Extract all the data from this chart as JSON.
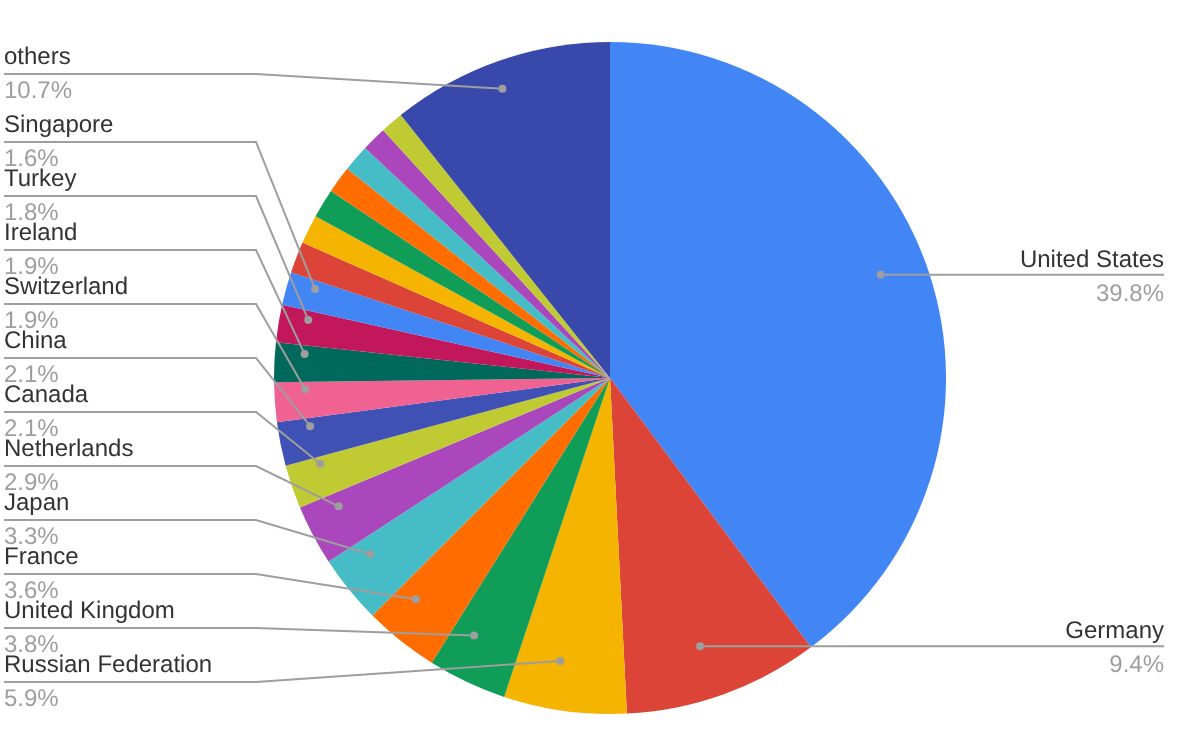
{
  "chart_data": {
    "type": "pie",
    "legend": false,
    "categories": [
      "United States",
      "Germany",
      "Russian Federation",
      "United Kingdom",
      "France",
      "Japan",
      "Netherlands",
      "Canada",
      "China",
      "Switzerland",
      "Ireland",
      "Turkey",
      "Singapore",
      null,
      null,
      null,
      null,
      null,
      null,
      null,
      "others"
    ],
    "values": [
      39.8,
      9.4,
      5.9,
      3.8,
      3.6,
      3.3,
      2.9,
      2.1,
      2.1,
      1.9,
      1.9,
      1.8,
      1.6,
      1.5,
      1.4,
      1.4,
      1.3,
      1.3,
      1.2,
      1.1,
      10.7
    ],
    "value_labels": [
      "39.8%",
      "9.4%",
      "5.9%",
      "3.8%",
      "3.6%",
      "3.3%",
      "2.9%",
      "2.1%",
      "2.1%",
      "1.9%",
      "1.9%",
      "1.8%",
      "1.6%",
      null,
      null,
      null,
      null,
      null,
      null,
      null,
      "10.7%"
    ],
    "colors": [
      "#4285f4",
      "#db4437",
      "#f4b400",
      "#0f9d58",
      "#ff6d01",
      "#46bdc6",
      "#ab47bc",
      "#c0ca33",
      "#3f51b5",
      "#f06292",
      "#00695c",
      "#c2185b",
      "#4285f4",
      "#db4437",
      "#f4b400",
      "#0f9d58",
      "#ff6d01",
      "#46bdc6",
      "#ab47bc",
      "#c0ca33",
      "#3949ab"
    ]
  }
}
